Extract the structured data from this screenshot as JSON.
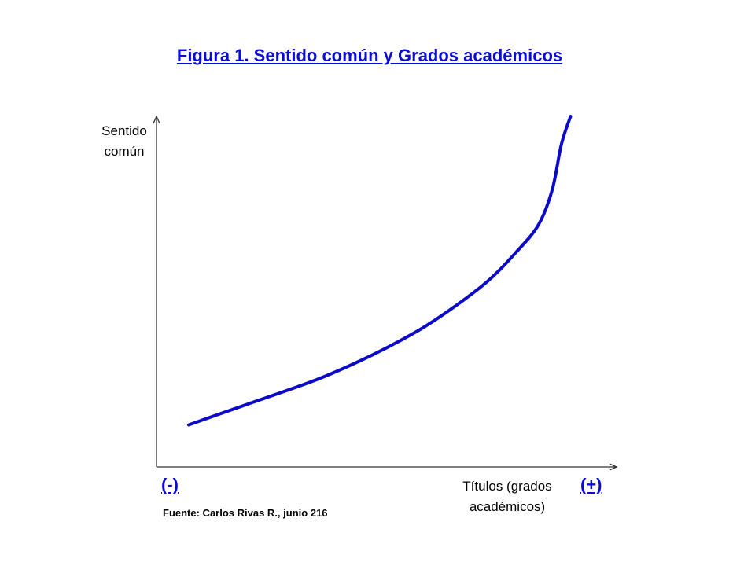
{
  "title": "Figura 1. Sentido común y Grados académicos",
  "y_axis_label_line1": "Sentido",
  "y_axis_label_line2": "común",
  "x_axis_label_line1": "Títulos (grados",
  "x_axis_label_line2": "académicos)",
  "x_low_marker": "(-)",
  "x_high_marker": "(+)",
  "source": "Fuente: Carlos Rivas R., junio 216",
  "colors": {
    "title": "#0b0bd6",
    "curve": "#0a0ac8",
    "axis": "#333333"
  },
  "chart_data": {
    "type": "line",
    "series": [
      {
        "x": [
          0.07,
          0.2,
          0.35,
          0.47,
          0.57,
          0.64,
          0.72,
          0.78,
          0.83,
          0.86,
          0.88,
          0.9
        ],
        "values": [
          0.12,
          0.18,
          0.25,
          0.32,
          0.39,
          0.45,
          0.53,
          0.61,
          0.69,
          0.79,
          0.92,
          1.0
        ]
      }
    ],
    "xlim": [
      0,
      1
    ],
    "ylim": [
      0,
      1
    ],
    "grid": false,
    "legend": "none"
  }
}
